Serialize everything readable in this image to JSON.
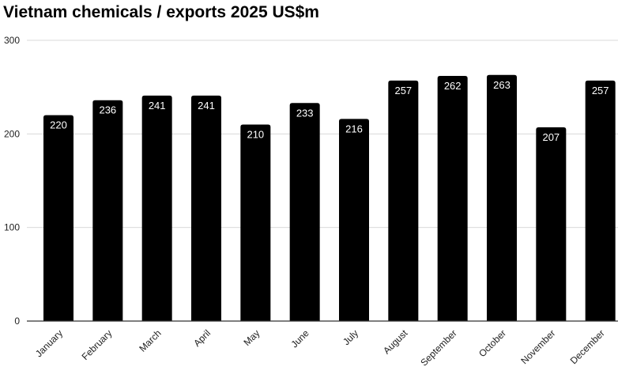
{
  "chart_data": {
    "type": "bar",
    "title": "Vietnam chemicals / exports 2025 US$m",
    "categories": [
      "January",
      "February",
      "March",
      "April",
      "May",
      "June",
      "July",
      "August",
      "September",
      "October",
      "November",
      "December"
    ],
    "values": [
      220,
      236,
      241,
      241,
      210,
      233,
      216,
      257,
      262,
      263,
      207,
      257
    ],
    "data_labels": [
      "220",
      "236",
      "241",
      "241",
      "210",
      "233",
      "216",
      "257",
      "262",
      "263",
      "207",
      "257"
    ],
    "ylim": [
      0,
      300
    ],
    "yticks": [
      0,
      100,
      200,
      300
    ],
    "grid": true,
    "bar_color": "#000000",
    "label_color": "#ffffff",
    "grid_color": "#d9d9d9"
  }
}
